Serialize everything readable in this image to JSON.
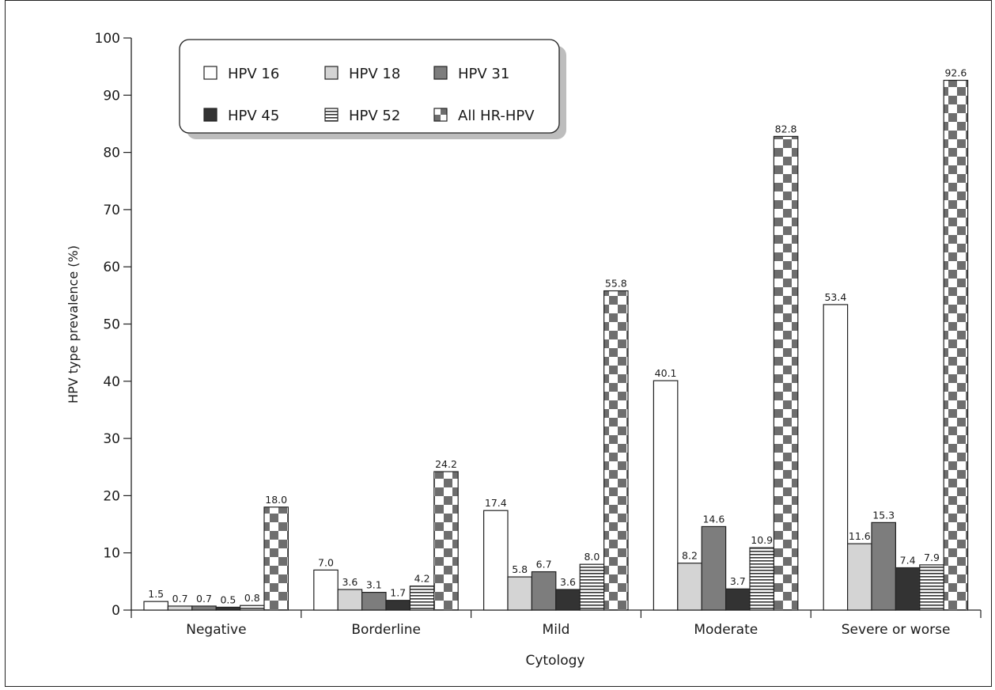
{
  "chart_data": {
    "type": "bar",
    "xlabel": "Cytology",
    "ylabel": "HPV type prevalence (%)",
    "ylim": [
      0,
      100
    ],
    "yticks": [
      "0",
      "10",
      "20",
      "30",
      "40",
      "50",
      "60",
      "70",
      "80",
      "90",
      "100"
    ],
    "categories": [
      "Negative",
      "Borderline",
      "Mild",
      "Moderate",
      "Severe or worse"
    ],
    "legend_position": "top-left",
    "series": [
      {
        "name": "HPV 16",
        "pattern": "white",
        "values": [
          1.5,
          7.0,
          17.4,
          40.1,
          53.4
        ],
        "labels": [
          "1.5",
          "7.0",
          "17.4",
          "40.1",
          "53.4"
        ]
      },
      {
        "name": "HPV 18",
        "pattern": "light-gray",
        "values": [
          0.7,
          3.6,
          5.8,
          8.2,
          11.6
        ],
        "labels": [
          "0.7",
          "3.6",
          "5.8",
          "8.2",
          "11.6"
        ]
      },
      {
        "name": "HPV 31",
        "pattern": "mid-gray",
        "values": [
          0.7,
          3.1,
          6.7,
          14.6,
          15.3
        ],
        "labels": [
          "0.7",
          "3.1",
          "6.7",
          "14.6",
          "15.3"
        ]
      },
      {
        "name": "HPV 45",
        "pattern": "dark",
        "values": [
          0.5,
          1.7,
          3.6,
          3.7,
          7.4
        ],
        "labels": [
          "0.5",
          "1.7",
          "3.6",
          "3.7",
          "7.4"
        ]
      },
      {
        "name": "HPV 52",
        "pattern": "horizontal-lines",
        "values": [
          0.8,
          4.2,
          8.0,
          10.9,
          7.9
        ],
        "labels": [
          "0.8",
          "4.2",
          "8.0",
          "10.9",
          "7.9"
        ]
      },
      {
        "name": "All HR-HPV",
        "pattern": "checkerboard",
        "values": [
          18.0,
          24.2,
          55.8,
          82.8,
          92.6
        ],
        "labels": [
          "18.0",
          "24.2",
          "55.8",
          "82.8",
          "92.6"
        ]
      }
    ],
    "colors": {
      "white": "#ffffff",
      "light-gray": "#d4d4d4",
      "mid-gray": "#7d7d7d",
      "dark": "#333333",
      "lines": "#333333",
      "check": "#6e6e6e"
    }
  }
}
